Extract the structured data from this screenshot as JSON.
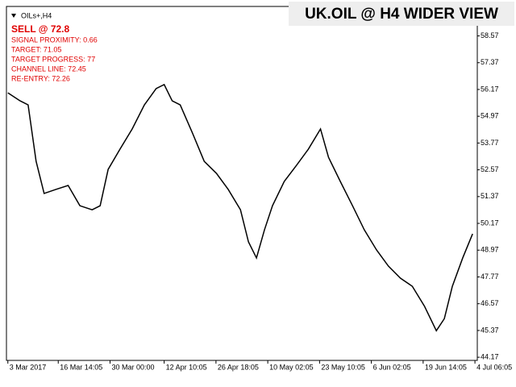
{
  "chart_data": {
    "type": "line",
    "title": "UK.OIL @ H4 WIDER VIEW",
    "symbol": "OILs+,H4",
    "signal": "SELL @ 72.8",
    "annotations": [
      "SIGNAL PROXIMITY: 0.66",
      "TARGET: 71.05",
      "TARGET PROGRESS: 77",
      "CHANNEL LINE: 72.45",
      "RE-ENTRY: 72.26"
    ],
    "x": [
      0.3,
      2.9,
      4.6,
      6.3,
      8.0,
      10.5,
      13.1,
      15.6,
      18.2,
      19.9,
      21.6,
      24.1,
      26.7,
      29.3,
      31.8,
      33.5,
      35.2,
      36.9,
      39.5,
      42.0,
      44.6,
      47.1,
      49.7,
      51.4,
      53.1,
      54.8,
      56.5,
      59.0,
      61.6,
      64.1,
      66.7,
      68.4,
      70.9,
      73.5,
      76.0,
      78.6,
      81.1,
      83.7,
      86.2,
      88.8,
      91.3,
      93.0,
      94.7,
      96.9,
      99.0
    ],
    "series": [
      {
        "color": "#000000",
        "values": [
          56.02,
          55.66,
          55.48,
          52.95,
          51.51,
          51.69,
          51.87,
          50.96,
          50.78,
          50.96,
          52.59,
          53.49,
          54.4,
          55.48,
          56.21,
          56.39,
          55.66,
          55.48,
          54.22,
          52.95,
          52.41,
          51.69,
          50.78,
          49.34,
          48.62,
          49.88,
          50.96,
          52.05,
          52.77,
          53.49,
          54.4,
          53.13,
          52.05,
          50.96,
          49.88,
          48.98,
          48.26,
          47.71,
          47.35,
          46.45,
          45.36,
          45.9,
          47.35,
          48.62,
          49.7
        ]
      }
    ],
    "xlim": [
      0,
      100
    ],
    "xticks": [
      {
        "value": 0.3,
        "label": "3 Mar 2017"
      },
      {
        "value": 11,
        "label": "16 Mar 14:05"
      },
      {
        "value": 22,
        "label": "30 Mar 00:00"
      },
      {
        "value": 33.5,
        "label": "12 Apr 10:05"
      },
      {
        "value": 44.5,
        "label": "26 Apr 18:05"
      },
      {
        "value": 55.5,
        "label": "10 May 02:05"
      },
      {
        "value": 66.5,
        "label": "23 May 10:05"
      },
      {
        "value": 77.5,
        "label": "6 Jun 02:05"
      },
      {
        "value": 88.5,
        "label": "19 Jun 14:05"
      },
      {
        "value": 99.5,
        "label": "4 Jul 06:05"
      }
    ],
    "ylim": [
      44.03,
      59.89
    ],
    "yticks": [
      44.17,
      45.37,
      46.57,
      47.77,
      48.97,
      50.17,
      51.37,
      52.57,
      53.77,
      54.97,
      56.17,
      57.37,
      58.57
    ]
  }
}
